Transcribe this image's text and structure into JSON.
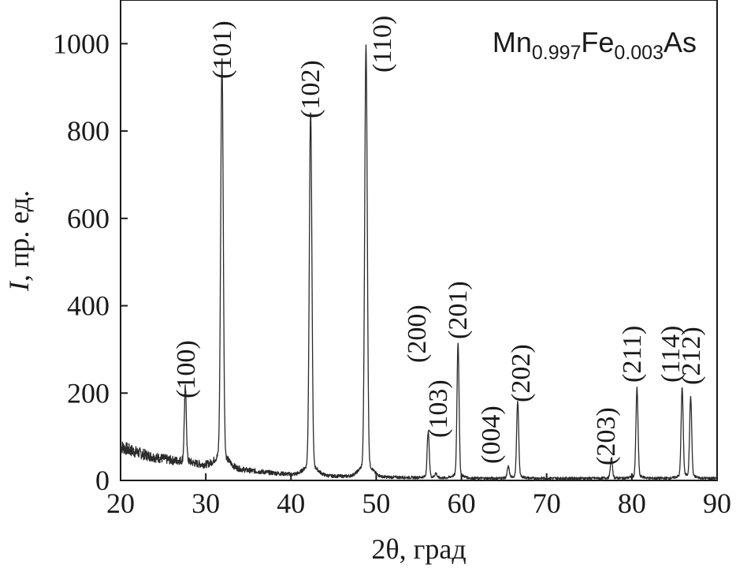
{
  "chart_data": {
    "type": "line",
    "xlabel": "2θ, град",
    "ylabel_symbol": "I",
    "ylabel_rest": ", пр. ед.",
    "xlim": [
      20,
      90
    ],
    "ylim": [
      0,
      1100
    ],
    "xticks": [
      20,
      30,
      40,
      50,
      60,
      70,
      80,
      90
    ],
    "yticks": [
      0,
      200,
      400,
      600,
      800,
      1000
    ],
    "grid": false,
    "compound": {
      "base1": "Mn",
      "sub1": "0.997",
      "base2": "Fe",
      "sub2": "0.003",
      "base3": "As"
    },
    "background": {
      "x": [
        20,
        21,
        22,
        23,
        24,
        25,
        26,
        27,
        28,
        29,
        30,
        31,
        32,
        33,
        34,
        35,
        36,
        38,
        40,
        42,
        45,
        48,
        50,
        53,
        56,
        60,
        65,
        70,
        75,
        80,
        85,
        90
      ],
      "y": [
        78,
        70,
        64,
        58,
        53,
        50,
        46,
        43,
        40,
        38,
        36,
        34,
        32,
        29,
        26,
        23,
        21,
        17,
        14,
        12,
        10,
        9,
        8,
        7,
        6,
        5,
        5,
        5,
        5,
        5,
        5,
        5
      ]
    },
    "peaks": [
      {
        "label": "(100)",
        "x": 27.6,
        "y": 165,
        "width": 0.12
      },
      {
        "label": "(101)",
        "x": 31.9,
        "y": 905,
        "width": 0.15
      },
      {
        "label": "(102)",
        "x": 42.3,
        "y": 810,
        "width": 0.15
      },
      {
        "label": "(110)",
        "x": 48.8,
        "y": 960,
        "width": 0.15
      },
      {
        "label": "(200)",
        "x": 56.1,
        "y": 103,
        "width": 0.12
      },
      {
        "label": "(103)",
        "x": 57.0,
        "y": 10,
        "width": 0.12
      },
      {
        "label": "(201)",
        "x": 59.6,
        "y": 302,
        "width": 0.12
      },
      {
        "label": "(004)",
        "x": 65.5,
        "y": 25,
        "width": 0.12
      },
      {
        "label": "(202)",
        "x": 66.6,
        "y": 170,
        "width": 0.12
      },
      {
        "label": "(203)",
        "x": 77.6,
        "y": 45,
        "width": 0.12
      },
      {
        "label": "(211)",
        "x": 80.6,
        "y": 200,
        "width": 0.12
      },
      {
        "label": "(114)",
        "x": 85.9,
        "y": 200,
        "width": 0.12
      },
      {
        "label": "(212)",
        "x": 86.9,
        "y": 180,
        "width": 0.12
      }
    ],
    "colors": {
      "line": "#2a2a2a",
      "axis": "#1a1a1a",
      "text": "#1a1a1a"
    }
  }
}
